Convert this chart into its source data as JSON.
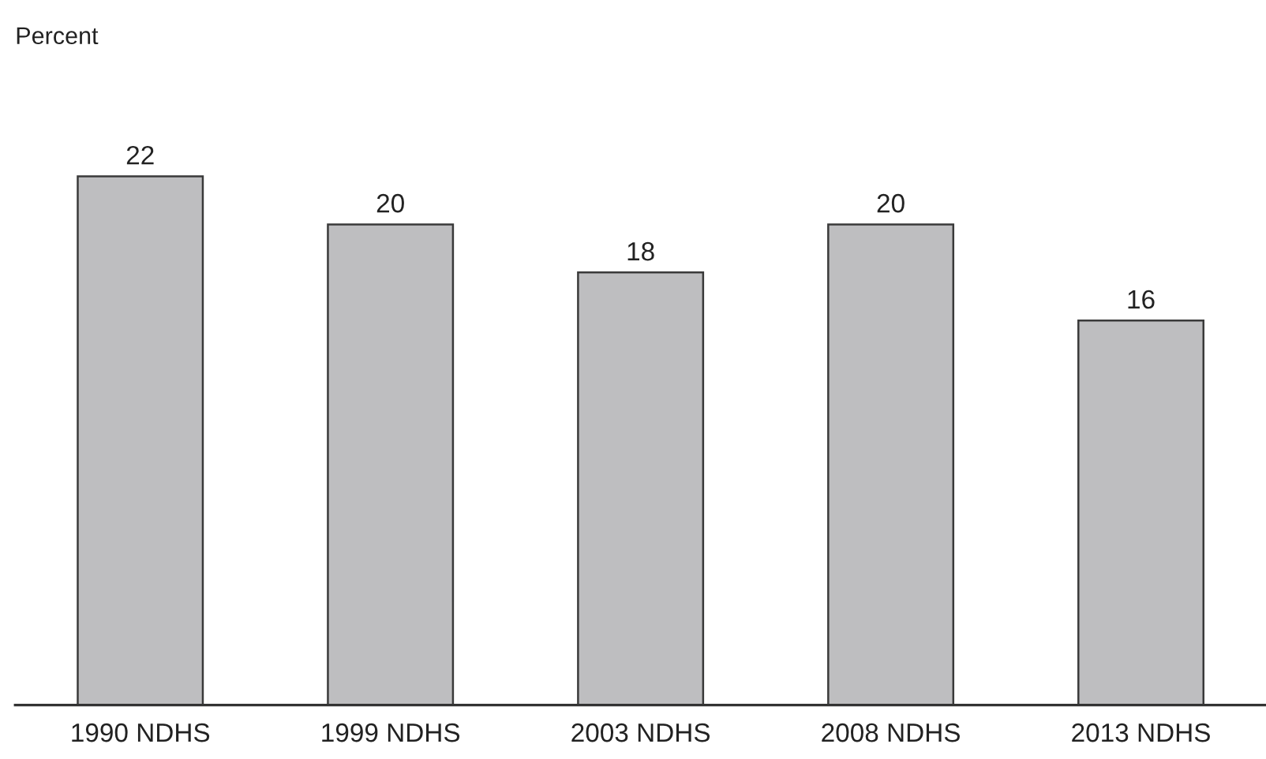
{
  "chart_data": {
    "type": "bar",
    "annotations": [
      "Percent"
    ],
    "categories": [
      "1990 NDHS",
      "1999 NDHS",
      "2003 NDHS",
      "2008 NDHS",
      "2013 NDHS"
    ],
    "values": [
      22,
      20,
      18,
      20,
      16
    ],
    "color": "#bebec0",
    "data_labels": true,
    "grid": false,
    "legend": false
  }
}
